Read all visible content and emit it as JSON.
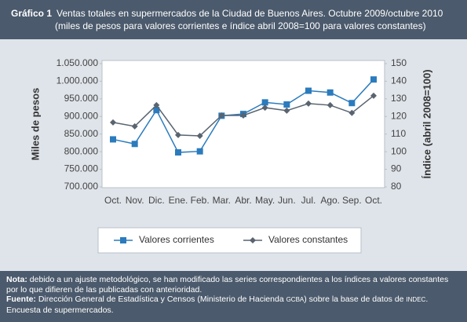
{
  "chart_data": {
    "type": "line",
    "title_label": "Gráfico 1",
    "title": "Ventas totales en supermercados de la Ciudad de Buenos Aires. Octubre 2009/octubre 2010",
    "subtitle": "(miles de pesos para valores corrientes e índice abril 2008=100 para valores constantes)",
    "y_label": "Miles de pesos",
    "y2_label": "Índice (abril 2008=100)",
    "categories": [
      "Oct.",
      "Nov.",
      "Dic.",
      "Ene.",
      "Feb.",
      "Mar.",
      "Abr.",
      "May.",
      "Jun.",
      "Jul.",
      "Ago.",
      "Sep.",
      "Oct."
    ],
    "series": [
      {
        "name": "Valores corrientes",
        "color": "#2b7bbd",
        "marker": "square",
        "values": [
          835000,
          822000,
          918000,
          798000,
          801000,
          902000,
          907000,
          940000,
          934000,
          973000,
          968000,
          938000,
          1005000
        ]
      },
      {
        "name": "Valores constantes",
        "color": "#596470",
        "marker": "diamond",
        "axis": "y2",
        "values": [
          116.6,
          114.4,
          126.4,
          109.5,
          109,
          120.6,
          120.6,
          125,
          123.3,
          127.3,
          126.4,
          122,
          131.8
        ]
      }
    ],
    "ylim": [
      700000,
      1050000
    ],
    "yticks": [
      {
        "value": 700000,
        "label": "700.000"
      },
      {
        "value": 750000,
        "label": "750.000"
      },
      {
        "value": 800000,
        "label": "800.000"
      },
      {
        "value": 850000,
        "label": "850.000"
      },
      {
        "value": 900000,
        "label": "900.000"
      },
      {
        "value": 950000,
        "label": "950.000"
      },
      {
        "value": 1000000,
        "label": "1.000.000"
      },
      {
        "value": 1050000,
        "label": "1.050.000"
      }
    ],
    "y2lim": [
      80,
      150
    ],
    "y2ticks": [
      80,
      90,
      100,
      110,
      120,
      130,
      140,
      150
    ],
    "legend": "bottom",
    "note_label": "Nota:",
    "note": "debido a un ajuste metodológico, se han modificado las series correspondientes a los índices a valores constantes por lo que difieren de las publicadas con anterioridad.",
    "source_label": "Fuente:",
    "source": [
      "Dirección General de Estadística y Censos (Ministerio de Hacienda ",
      "GCBA",
      ") sobre la base de datos de ",
      "INDEC",
      ". Encuesta de supermercados."
    ]
  }
}
